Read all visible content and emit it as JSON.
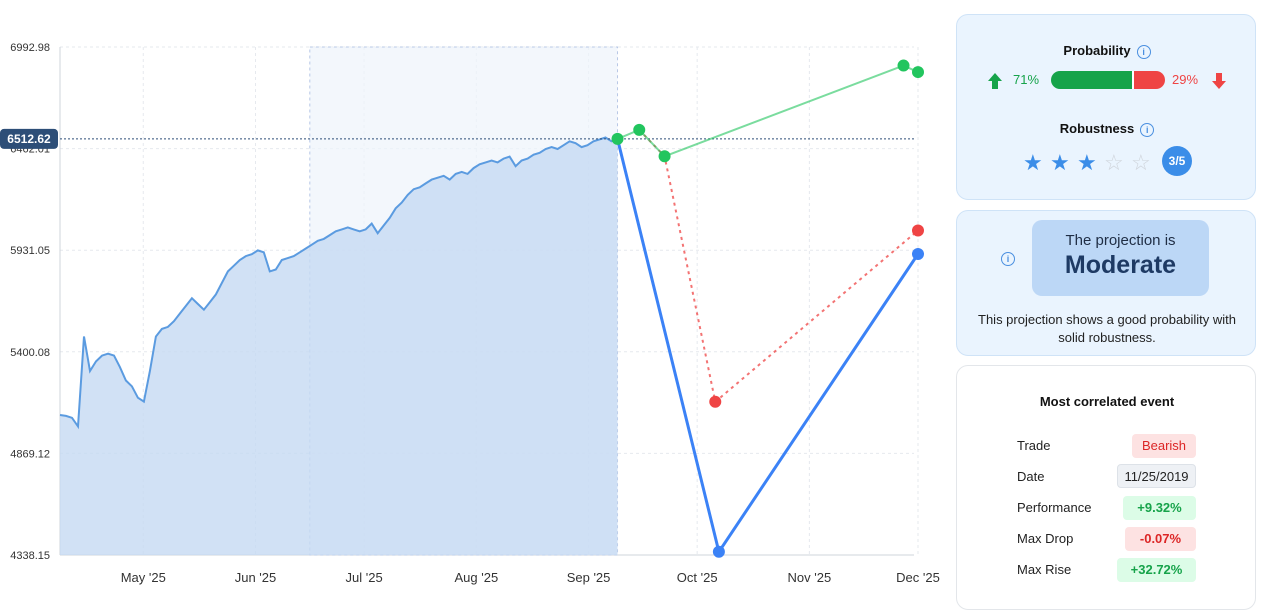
{
  "chart_data": {
    "type": "line",
    "y_ticks": [
      "6992.98",
      "6462.01",
      "5931.05",
      "5400.08",
      "4869.12",
      "4338.15"
    ],
    "y_range": [
      4338.15,
      6992.98
    ],
    "x_ticks": [
      "May '25",
      "Jun '25",
      "Jul '25",
      "Aug '25",
      "Sep '25",
      "Oct '25",
      "Nov '25",
      "Dec '25"
    ],
    "current_value_label": "6512.62",
    "history": {
      "name": "price",
      "start": "2025-04-08",
      "end": "2025-09-09",
      "values": [
        5070,
        5065,
        5055,
        5010,
        5480,
        5300,
        5350,
        5380,
        5390,
        5380,
        5320,
        5250,
        5220,
        5160,
        5140,
        5300,
        5480,
        5520,
        5530,
        5560,
        5600,
        5640,
        5680,
        5650,
        5620,
        5660,
        5700,
        5760,
        5820,
        5850,
        5880,
        5900,
        5910,
        5930,
        5920,
        5820,
        5830,
        5880,
        5890,
        5900,
        5920,
        5940,
        5960,
        5980,
        5990,
        6010,
        6030,
        6040,
        6050,
        6040,
        6030,
        6040,
        6070,
        6020,
        6060,
        6100,
        6150,
        6180,
        6220,
        6250,
        6260,
        6280,
        6300,
        6310,
        6320,
        6300,
        6330,
        6340,
        6330,
        6360,
        6380,
        6390,
        6400,
        6390,
        6410,
        6420,
        6370,
        6400,
        6410,
        6430,
        6440,
        6460,
        6470,
        6460,
        6480,
        6500,
        6490,
        6470,
        6480,
        6500,
        6510,
        6520,
        6500,
        6512.62
      ]
    },
    "projection_primary": {
      "color": "#3b82f6",
      "points": [
        [
          "2025-09-09",
          6512.62
        ],
        [
          "2025-10-07",
          4355
        ],
        [
          "2025-12-01",
          5911
        ]
      ]
    },
    "projection_green": {
      "color": "#22c55e",
      "points": [
        [
          "2025-09-09",
          6512.62
        ],
        [
          "2025-09-15",
          6560
        ],
        [
          "2025-09-22",
          6422
        ],
        [
          "2025-11-27",
          6896
        ],
        [
          "2025-12-01",
          6862
        ]
      ]
    },
    "projection_red": {
      "color": "#ef4444",
      "points": [
        [
          "2025-09-15",
          6560
        ],
        [
          "2025-09-22",
          6422
        ],
        [
          "2025-10-06",
          5139
        ],
        [
          "2025-12-01",
          6034
        ]
      ]
    },
    "highlight_range": [
      "2025-06-16",
      "2025-09-09"
    ],
    "grid": true
  },
  "probability": {
    "title": "Probability",
    "up_pct_label": "71%",
    "down_pct_label": "29%",
    "up_fraction": 0.71,
    "up_color": "#16a34a",
    "down_color": "#ef4444"
  },
  "robustness": {
    "title": "Robustness",
    "stars_filled": 3,
    "stars_total": 5,
    "badge": "3/5",
    "star_color": "#3b8de8"
  },
  "projection": {
    "title": "The projection is",
    "value": "Moderate",
    "description_line1": "This projection shows a good probability with",
    "description_line2": "solid robustness."
  },
  "correlated": {
    "title": "Most correlated event",
    "rows": [
      {
        "label": "Trade",
        "value": "Bearish",
        "tone": "red"
      },
      {
        "label": "Date",
        "value": "11/25/2019",
        "tone": "gray"
      },
      {
        "label": "Performance",
        "value": "+9.32%",
        "tone": "green"
      },
      {
        "label": "Max Drop",
        "value": "-0.07%",
        "tone": "red"
      },
      {
        "label": "Max Rise",
        "value": "+32.72%",
        "tone": "green"
      }
    ]
  }
}
